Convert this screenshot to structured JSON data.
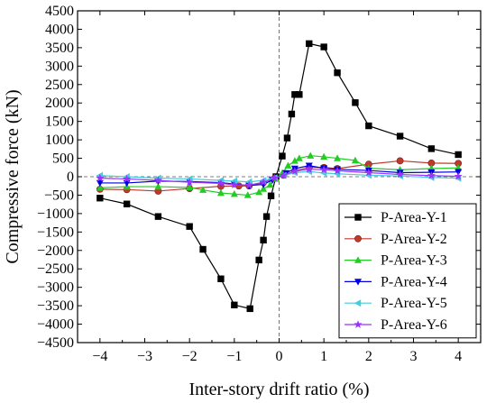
{
  "chart_data": {
    "type": "line",
    "title": "",
    "xlabel": "Inter-story drift ratio (%)",
    "ylabel": "Compressive force (kN)",
    "xlim": [
      -4.5,
      4.5
    ],
    "ylim": [
      -4500,
      4500
    ],
    "x_ticks": [
      -4,
      -3,
      -2,
      -1,
      0,
      1,
      2,
      3,
      4
    ],
    "y_ticks": [
      -4500,
      -4000,
      -3500,
      -3000,
      -2500,
      -2000,
      -1500,
      -1000,
      -500,
      0,
      500,
      1000,
      1500,
      2000,
      2500,
      3000,
      3500,
      4000,
      4500
    ],
    "zero_lines": true,
    "legend_position": "bottom-right",
    "series": [
      {
        "name": "P-Area-Y-1",
        "color": "#000000",
        "marker": "square",
        "x": [
          -4.0,
          -3.4,
          -2.7,
          -2.0,
          -1.7,
          -1.3,
          -1.0,
          -0.65,
          -0.45,
          -0.35,
          -0.28,
          -0.18,
          -0.07,
          0.07,
          0.18,
          0.28,
          0.35,
          0.45,
          0.67,
          1.0,
          1.3,
          1.7,
          2.0,
          2.7,
          3.4,
          4.0
        ],
        "y": [
          -580,
          -740,
          -1080,
          -1350,
          -1970,
          -2770,
          -3480,
          -3580,
          -2260,
          -1720,
          -1080,
          -520,
          0,
          560,
          1050,
          1700,
          2230,
          2230,
          3610,
          3520,
          2820,
          2010,
          1380,
          1100,
          760,
          600
        ]
      },
      {
        "name": "P-Area-Y-2",
        "color": "#c0392b",
        "marker": "circle",
        "x": [
          -4.0,
          -3.4,
          -2.7,
          -2.0,
          -1.3,
          -0.9,
          -0.67,
          -0.35,
          -0.1,
          0.1,
          0.35,
          0.67,
          1.0,
          1.3,
          2.0,
          2.7,
          3.4,
          4.0
        ],
        "y": [
          -340,
          -350,
          -390,
          -320,
          -260,
          -250,
          -250,
          -160,
          -40,
          40,
          160,
          250,
          250,
          220,
          340,
          430,
          370,
          360
        ]
      },
      {
        "name": "P-Area-Y-3",
        "color": "#22cc22",
        "marker": "triangle-up",
        "x": [
          -4.0,
          -3.4,
          -2.7,
          -2.0,
          -1.7,
          -1.3,
          -1.0,
          -0.7,
          -0.45,
          -0.35,
          -0.2,
          -0.07,
          0.07,
          0.2,
          0.35,
          0.45,
          0.7,
          1.0,
          1.3,
          1.7,
          2.0,
          2.7,
          3.4,
          4.0
        ],
        "y": [
          -300,
          -270,
          -270,
          -290,
          -360,
          -440,
          -470,
          -500,
          -420,
          -330,
          -220,
          -60,
          100,
          300,
          430,
          500,
          570,
          540,
          500,
          440,
          230,
          190,
          220,
          240
        ]
      },
      {
        "name": "P-Area-Y-4",
        "color": "#0000dd",
        "marker": "triangle-down",
        "x": [
          -4.0,
          -3.4,
          -2.7,
          -2.0,
          -1.3,
          -1.0,
          -0.67,
          -0.35,
          -0.15,
          0.15,
          0.35,
          0.67,
          1.0,
          1.3,
          2.0,
          2.7,
          3.4,
          4.0
        ],
        "y": [
          -170,
          -170,
          -120,
          -130,
          -160,
          -200,
          -240,
          -210,
          -90,
          100,
          220,
          300,
          230,
          200,
          170,
          110,
          120,
          130
        ]
      },
      {
        "name": "P-Area-Y-5",
        "color": "#44ccdd",
        "marker": "triangle-left",
        "x": [
          -4.0,
          -3.4,
          -2.7,
          -2.0,
          -1.3,
          -1.0,
          -0.67,
          -0.35,
          -0.1,
          0.1,
          0.35,
          0.67,
          1.0,
          1.3,
          2.0,
          2.7,
          3.4,
          4.0
        ],
        "y": [
          30,
          0,
          -40,
          -60,
          -100,
          -120,
          -140,
          -100,
          -30,
          30,
          110,
          140,
          100,
          80,
          40,
          20,
          -20,
          -40
        ]
      },
      {
        "name": "P-Area-Y-6",
        "color": "#9933ff",
        "marker": "star",
        "x": [
          -4.0,
          -3.4,
          -2.7,
          -2.0,
          -1.3,
          -1.0,
          -0.67,
          -0.35,
          -0.1,
          0.1,
          0.35,
          0.67,
          1.0,
          1.3,
          2.0,
          2.7,
          3.4,
          4.0
        ],
        "y": [
          -40,
          -60,
          -100,
          -150,
          -180,
          -220,
          -230,
          -150,
          -40,
          40,
          150,
          200,
          190,
          160,
          110,
          60,
          30,
          10
        ]
      }
    ]
  }
}
